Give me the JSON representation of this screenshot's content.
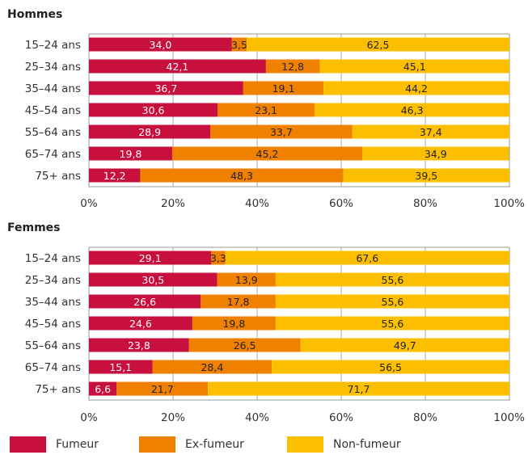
{
  "chart_data": [
    {
      "type": "bar",
      "orientation": "horizontal",
      "stacked": true,
      "title": "Hommes",
      "categories": [
        "15–24 ans",
        "25–34 ans",
        "35–44 ans",
        "45–54 ans",
        "55–64 ans",
        "65–74 ans",
        "75+ ans"
      ],
      "series": [
        {
          "name": "Fumeur",
          "values": [
            34.0,
            42.1,
            36.7,
            30.6,
            28.9,
            19.8,
            12.2
          ],
          "labels": [
            "34,0",
            "42,1",
            "36,7",
            "30,6",
            "28,9",
            "19,8",
            "12,2"
          ]
        },
        {
          "name": "Ex-fumeur",
          "values": [
            3.5,
            12.8,
            19.1,
            23.1,
            33.7,
            45.2,
            48.3
          ],
          "labels": [
            "3,5",
            "12,8",
            "19,1",
            "23,1",
            "33,7",
            "45,2",
            "48,3"
          ]
        },
        {
          "name": "Non-fumeur",
          "values": [
            62.5,
            45.1,
            44.2,
            46.3,
            37.4,
            34.9,
            39.5
          ],
          "labels": [
            "62,5",
            "45,1",
            "44,2",
            "46,3",
            "37,4",
            "34,9",
            "39,5"
          ]
        }
      ],
      "xlim": [
        0,
        100
      ],
      "xticks": [
        "0%",
        "20%",
        "40%",
        "60%",
        "80%",
        "100%"
      ],
      "xlabel": "",
      "ylabel": ""
    },
    {
      "type": "bar",
      "orientation": "horizontal",
      "stacked": true,
      "title": "Femmes",
      "categories": [
        "15–24 ans",
        "25–34 ans",
        "35–44 ans",
        "45–54 ans",
        "55–64 ans",
        "65–74 ans",
        "75+ ans"
      ],
      "series": [
        {
          "name": "Fumeur",
          "values": [
            29.1,
            30.5,
            26.6,
            24.6,
            23.8,
            15.1,
            6.6
          ],
          "labels": [
            "29,1",
            "30,5",
            "26,6",
            "24,6",
            "23,8",
            "15,1",
            "6,6"
          ]
        },
        {
          "name": "Ex-fumeur",
          "values": [
            3.3,
            13.9,
            17.8,
            19.8,
            26.5,
            28.4,
            21.7
          ],
          "labels": [
            "3,3",
            "13,9",
            "17,8",
            "19,8",
            "26,5",
            "28,4",
            "21,7"
          ]
        },
        {
          "name": "Non-fumeur",
          "values": [
            67.6,
            55.6,
            55.6,
            55.6,
            49.7,
            56.5,
            71.7
          ],
          "labels": [
            "67,6",
            "55,6",
            "55,6",
            "55,6",
            "49,7",
            "56,5",
            "71,7"
          ]
        }
      ],
      "xlim": [
        0,
        100
      ],
      "xticks": [
        "0%",
        "20%",
        "40%",
        "60%",
        "80%",
        "100%"
      ],
      "xlabel": "",
      "ylabel": ""
    }
  ],
  "legend": {
    "placement": "bottom",
    "items": [
      {
        "label": "Fumeur",
        "color": "#c8103e"
      },
      {
        "label": "Ex-fumeur",
        "color": "#f08000"
      },
      {
        "label": "Non-fumeur",
        "color": "#fcbf00"
      }
    ]
  },
  "colors": {
    "fumeur": "#c8103e",
    "ex_fumeur": "#f08000",
    "non_fumeur": "#fcbf00",
    "fumeur_label_text": "#ffffff",
    "other_label_text": "#222222",
    "gridline": "#aaaaaa",
    "frame": "#999999"
  }
}
